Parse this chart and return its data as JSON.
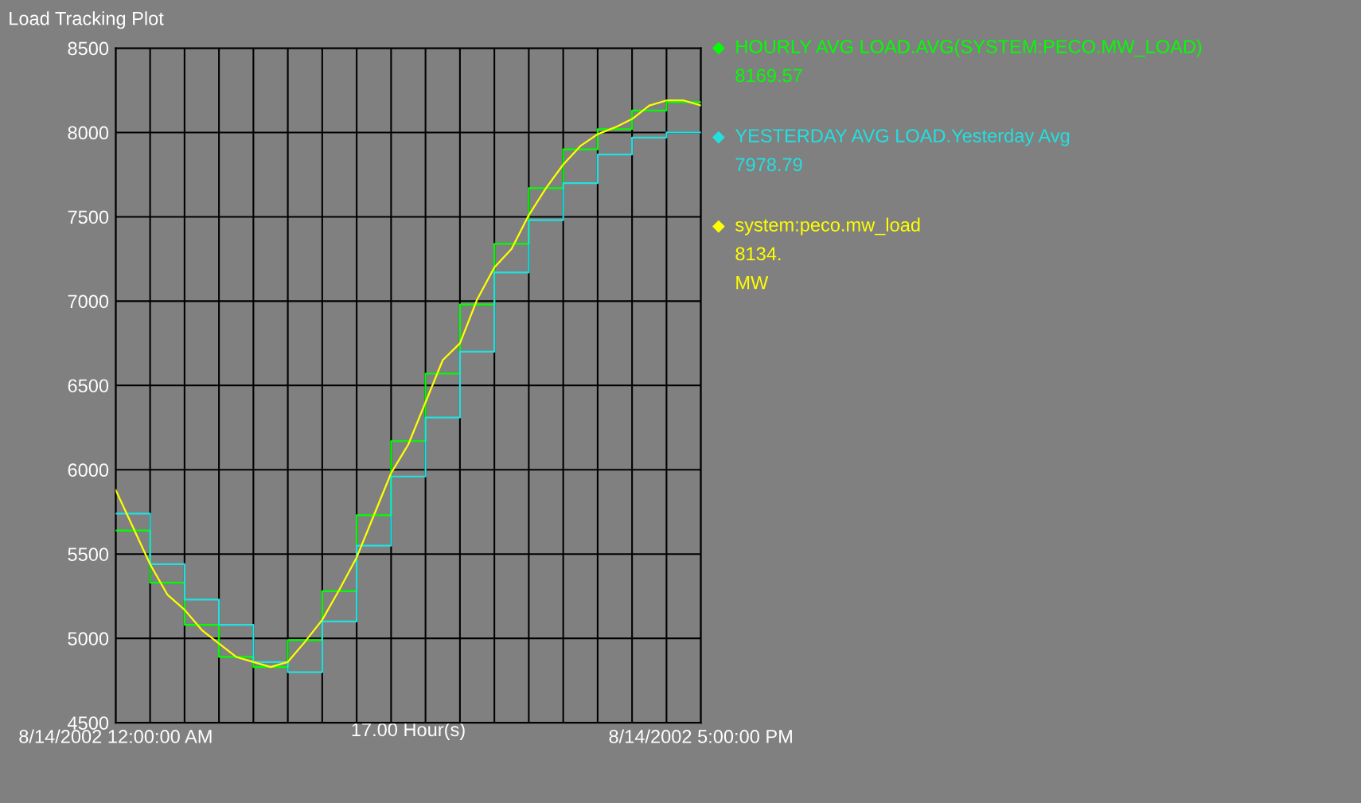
{
  "chart_data": {
    "type": "line",
    "title": "Load Tracking Plot",
    "xlabel": "17.00 Hour(s)",
    "xlim": [
      "2002-08-14T00:00",
      "2002-08-14T17:00"
    ],
    "ylim": [
      4500,
      8500
    ],
    "xticks": [
      {
        "value": "2002-08-14T00:00",
        "label": "8/14/2002 12:00:00 AM"
      },
      {
        "value": "2002-08-14T01:00",
        "label": null
      },
      {
        "value": "2002-08-14T02:00",
        "label": null
      },
      {
        "value": "2002-08-14T03:00",
        "label": null
      },
      {
        "value": "2002-08-14T04:00",
        "label": null
      },
      {
        "value": "2002-08-14T05:00",
        "label": null
      },
      {
        "value": "2002-08-14T06:00",
        "label": null
      },
      {
        "value": "2002-08-14T07:00",
        "label": null
      },
      {
        "value": "2002-08-14T08:00",
        "label": null
      },
      {
        "value": "2002-08-14T09:00",
        "label": null
      },
      {
        "value": "2002-08-14T10:00",
        "label": null
      },
      {
        "value": "2002-08-14T11:00",
        "label": null
      },
      {
        "value": "2002-08-14T12:00",
        "label": null
      },
      {
        "value": "2002-08-14T13:00",
        "label": null
      },
      {
        "value": "2002-08-14T14:00",
        "label": null
      },
      {
        "value": "2002-08-14T15:00",
        "label": null
      },
      {
        "value": "2002-08-14T16:00",
        "label": null
      },
      {
        "value": "2002-08-14T17:00",
        "label": "8/14/2002 5:00:00 PM"
      }
    ],
    "yticks": [
      4500,
      5000,
      5500,
      6000,
      6500,
      7000,
      7500,
      8000,
      8500
    ],
    "grid": true,
    "legend": "right",
    "series": [
      {
        "name": "HOURLY AVG LOAD.AVG(SYSTEM:PECO.MW_LOAD)",
        "type": "step",
        "color": "#00ff00",
        "x": [
          "2002-08-14T00:00",
          "2002-08-14T01:00",
          "2002-08-14T02:00",
          "2002-08-14T03:00",
          "2002-08-14T04:00",
          "2002-08-14T05:00",
          "2002-08-14T06:00",
          "2002-08-14T07:00",
          "2002-08-14T08:00",
          "2002-08-14T09:00",
          "2002-08-14T10:00",
          "2002-08-14T11:00",
          "2002-08-14T12:00",
          "2002-08-14T13:00",
          "2002-08-14T14:00",
          "2002-08-14T15:00",
          "2002-08-14T16:00",
          "2002-08-14T17:00"
        ],
        "values": [
          5640,
          5330,
          5080,
          4890,
          4830,
          4990,
          5280,
          5730,
          6170,
          6570,
          6980,
          7340,
          7670,
          7900,
          8020,
          8130,
          8180,
          8180
        ]
      },
      {
        "name": "YESTERDAY AVG LOAD.Yesterday Avg",
        "type": "step",
        "color": "#22e0e0",
        "x": [
          "2002-08-14T00:00",
          "2002-08-14T01:00",
          "2002-08-14T02:00",
          "2002-08-14T03:00",
          "2002-08-14T04:00",
          "2002-08-14T05:00",
          "2002-08-14T06:00",
          "2002-08-14T07:00",
          "2002-08-14T08:00",
          "2002-08-14T09:00",
          "2002-08-14T10:00",
          "2002-08-14T11:00",
          "2002-08-14T12:00",
          "2002-08-14T13:00",
          "2002-08-14T14:00",
          "2002-08-14T15:00",
          "2002-08-14T16:00",
          "2002-08-14T17:00"
        ],
        "values": [
          5740,
          5440,
          5230,
          5080,
          4860,
          4800,
          5100,
          5550,
          5960,
          6310,
          6700,
          7170,
          7480,
          7700,
          7870,
          7970,
          8000,
          8000
        ]
      },
      {
        "name": "system:peco.mw_load",
        "color": "#ffff00",
        "x": [
          "2002-08-14T00:00",
          "2002-08-14T00:30",
          "2002-08-14T01:00",
          "2002-08-14T01:30",
          "2002-08-14T02:00",
          "2002-08-14T02:30",
          "2002-08-14T03:00",
          "2002-08-14T03:30",
          "2002-08-14T04:00",
          "2002-08-14T04:30",
          "2002-08-14T05:00",
          "2002-08-14T05:30",
          "2002-08-14T06:00",
          "2002-08-14T06:30",
          "2002-08-14T07:00",
          "2002-08-14T07:30",
          "2002-08-14T08:00",
          "2002-08-14T08:30",
          "2002-08-14T09:00",
          "2002-08-14T09:30",
          "2002-08-14T10:00",
          "2002-08-14T10:30",
          "2002-08-14T11:00",
          "2002-08-14T11:30",
          "2002-08-14T12:00",
          "2002-08-14T12:30",
          "2002-08-14T13:00",
          "2002-08-14T13:30",
          "2002-08-14T14:00",
          "2002-08-14T14:30",
          "2002-08-14T15:00",
          "2002-08-14T15:30",
          "2002-08-14T16:00",
          "2002-08-14T16:30",
          "2002-08-14T17:00"
        ],
        "values": [
          5880,
          5660,
          5440,
          5260,
          5170,
          5050,
          4970,
          4890,
          4860,
          4830,
          4860,
          4980,
          5110,
          5290,
          5480,
          5730,
          5980,
          6150,
          6400,
          6650,
          6750,
          7010,
          7200,
          7310,
          7510,
          7670,
          7810,
          7920,
          7990,
          8030,
          8080,
          8160,
          8190,
          8190,
          8160
        ]
      }
    ],
    "annotations": [
      "8169.57",
      "7978.79",
      "8134.",
      "MW"
    ]
  }
}
